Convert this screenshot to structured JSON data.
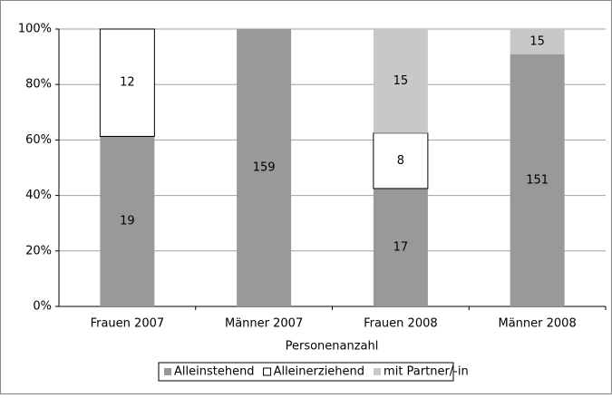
{
  "chart_data": {
    "type": "bar",
    "stacking": "percent",
    "categories": [
      "Frauen 2007",
      "Männer 2007",
      "Frauen 2008",
      "Männer 2008"
    ],
    "series": [
      {
        "name": "Alleinstehend",
        "color": "#999999",
        "values": [
          19,
          159,
          17,
          151
        ]
      },
      {
        "name": "Alleinerziehend",
        "color": "#ffffff",
        "values": [
          12,
          0,
          8,
          0
        ]
      },
      {
        "name": "mit Partner/-in",
        "color": "#c8c8c8",
        "values": [
          0,
          0,
          15,
          15
        ]
      }
    ],
    "x_label": "Personenanzahl",
    "ylim": [
      0,
      100
    ],
    "yticks": [
      {
        "value": 0,
        "label": "0%"
      },
      {
        "value": 20,
        "label": "20%"
      },
      {
        "value": 40,
        "label": "40%"
      },
      {
        "value": 60,
        "label": "60%"
      },
      {
        "value": 80,
        "label": "80%"
      },
      {
        "value": 100,
        "label": "100%"
      }
    ],
    "grid": true,
    "legend": "bottom"
  }
}
